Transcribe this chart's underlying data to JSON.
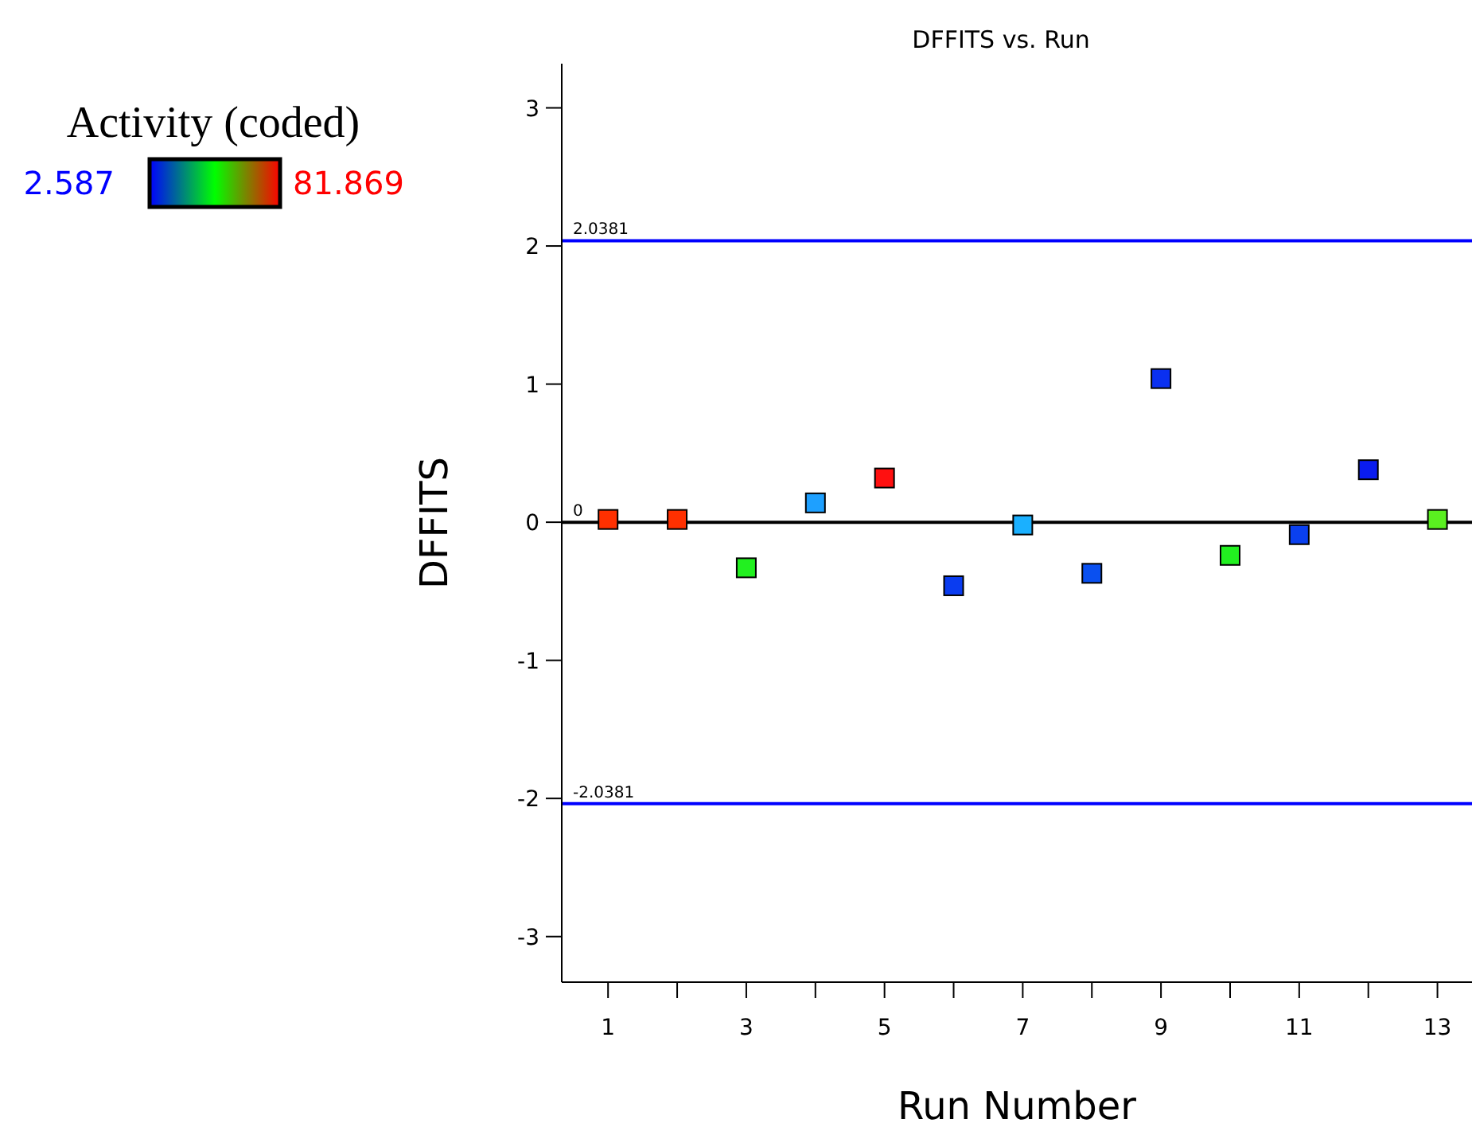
{
  "chart_data": {
    "type": "scatter",
    "title": "DFFITS vs. Run",
    "xlabel": "Run Number",
    "ylabel": "DFFITS",
    "clabel": "Activity (coded)",
    "annotations": [
      "2.587",
      "81.869"
    ],
    "x": [
      1,
      2,
      3,
      4,
      5,
      6,
      7,
      8,
      9,
      10,
      11,
      12,
      13
    ],
    "series": [
      {
        "values": [
          0.02,
          0.02,
          -0.33,
          0.14,
          0.32,
          -0.46,
          -0.02,
          -0.37,
          1.04,
          -0.24,
          -0.09,
          0.38,
          0.02
        ],
        "colors": [
          "#ff3000",
          "#ff3000",
          "#22f020",
          "#1ea0ff",
          "#ff1010",
          "#0a3cf0",
          "#1ab0ff",
          "#0a50f0",
          "#0a30f0",
          "#22f020",
          "#0a40f0",
          "#0a1cf0",
          "#5af020"
        ]
      }
    ],
    "marker": "square",
    "xlim": [
      0.33,
      13.5
    ],
    "ylim": [
      -3.33,
      3.32
    ],
    "xticks": [
      1,
      {
        "value": 2,
        "label": null
      },
      3,
      {
        "value": 4,
        "label": null
      },
      5,
      {
        "value": 6,
        "label": null
      },
      7,
      {
        "value": 8,
        "label": null
      },
      9,
      {
        "value": 10,
        "label": null
      },
      11,
      {
        "value": 12,
        "label": null
      },
      13
    ],
    "yticks": [
      -3,
      -2,
      -1,
      0,
      1,
      2,
      3
    ],
    "ref_lines": [
      {
        "axis": "y",
        "value": 2.0381,
        "label": "2.0381",
        "color": "#0000ff"
      },
      {
        "axis": "y",
        "value": 0,
        "label": "0",
        "color": "#000000"
      },
      {
        "axis": "y",
        "value": -2.0381,
        "label": "-2.0381",
        "color": "#0000ff"
      }
    ],
    "grid": false
  }
}
